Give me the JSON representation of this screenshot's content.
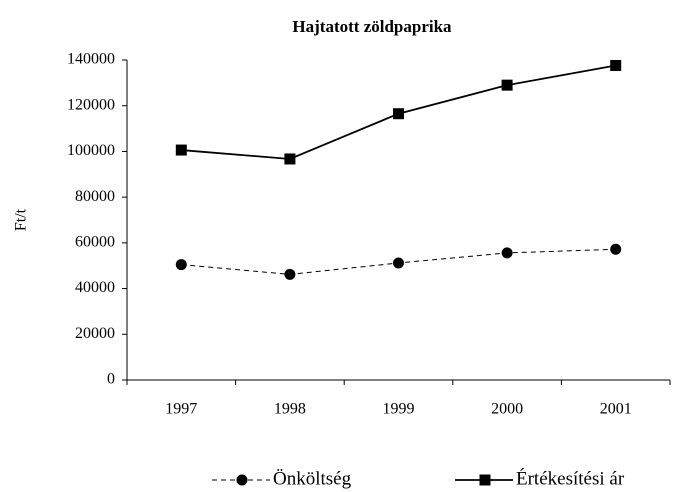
{
  "chart_data": {
    "type": "line",
    "title": "Hajtatott zöldpaprika",
    "ylabel": "Ft/t",
    "categories": [
      "1997",
      "1998",
      "1999",
      "2000",
      "2001"
    ],
    "series": [
      {
        "name": "Önköltség",
        "color": "#000000",
        "dash": "dashed",
        "marker": "circle",
        "values": [
          50500,
          46200,
          51200,
          55600,
          57200
        ]
      },
      {
        "name": "Értékesítési ár",
        "color": "#000000",
        "dash": "solid",
        "marker": "square",
        "values": [
          100600,
          96700,
          116500,
          129000,
          137600
        ]
      }
    ],
    "ylim": [
      0,
      140000
    ],
    "yticks": [
      0,
      20000,
      40000,
      60000,
      80000,
      100000,
      120000,
      140000
    ],
    "legend": "bottom"
  }
}
